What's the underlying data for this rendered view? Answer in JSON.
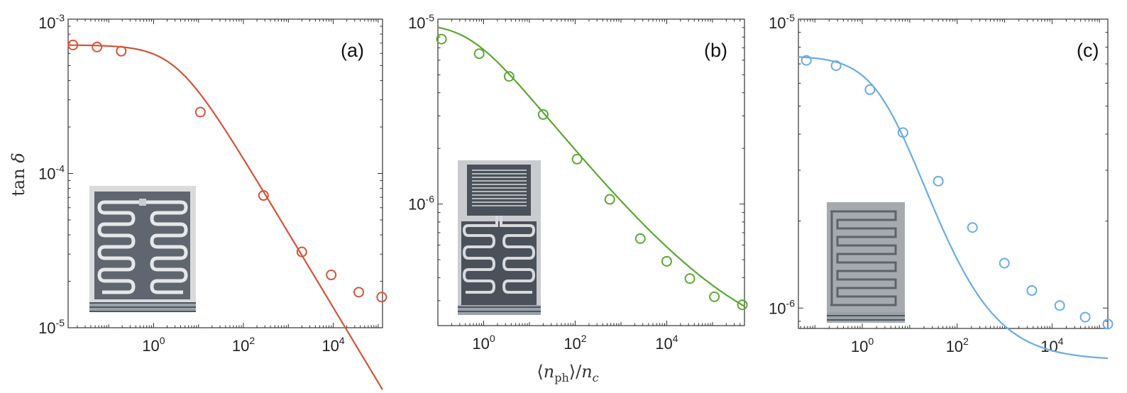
{
  "colors": {
    "panel_a": "#d4543a",
    "panel_b": "#5aa832",
    "panel_c": "#6aace6"
  },
  "chart_data": [
    {
      "type": "scatter",
      "panel_label": "(a)",
      "ylabel": "tan δ",
      "xlabel": "",
      "xscale": "log",
      "yscale": "log",
      "xlim": [
        0.0125,
        125000
      ],
      "ylim": [
        1e-05,
        0.001
      ],
      "xticks": [
        {
          "base": "10",
          "exp": "0",
          "value": 1
        },
        {
          "base": "10",
          "exp": "2",
          "value": 100
        },
        {
          "base": "10",
          "exp": "4",
          "value": 10000
        }
      ],
      "yticks": [
        {
          "base": "10",
          "exp": "-3",
          "value": 0.001
        },
        {
          "base": "10",
          "exp": "-4",
          "value": 0.0001
        },
        {
          "base": "10",
          "exp": "-5",
          "value": 1e-05
        }
      ],
      "points": [
        {
          "x": 0.016,
          "y": 0.00068
        },
        {
          "x": 0.055,
          "y": 0.00066
        },
        {
          "x": 0.19,
          "y": 0.00062
        },
        {
          "x": 11,
          "y": 0.00025
        },
        {
          "x": 280,
          "y": 7.2e-05
        },
        {
          "x": 2000,
          "y": 3.1e-05
        },
        {
          "x": 9000,
          "y": 2.2e-05
        },
        {
          "x": 37000,
          "y": 1.7e-05
        },
        {
          "x": 120000,
          "y": 1.58e-05
        }
      ],
      "fit": {
        "F": 0.00068,
        "n0": 3.1,
        "a": 0.485,
        "offset": 0
      }
    },
    {
      "type": "scatter",
      "panel_label": "(b)",
      "xlabel": "⟨n_ph⟩/n_c",
      "xscale": "log",
      "yscale": "log",
      "xlim": [
        0.1,
        500000
      ],
      "ylim": [
        2.2e-07,
        1e-05
      ],
      "xticks": [
        {
          "base": "10",
          "exp": "0",
          "value": 1
        },
        {
          "base": "10",
          "exp": "2",
          "value": 100
        },
        {
          "base": "10",
          "exp": "4",
          "value": 10000
        }
      ],
      "yticks": [
        {
          "base": "10",
          "exp": "-5",
          "value": 1e-05
        },
        {
          "base": "10",
          "exp": "-6",
          "value": 1e-06
        }
      ],
      "points": [
        {
          "x": 0.12,
          "y": 7.8e-06
        },
        {
          "x": 0.8,
          "y": 6.5e-06
        },
        {
          "x": 3.6,
          "y": 4.9e-06
        },
        {
          "x": 20,
          "y": 3.05e-06
        },
        {
          "x": 110,
          "y": 1.75e-06
        },
        {
          "x": 570,
          "y": 1.06e-06
        },
        {
          "x": 2650,
          "y": 6.5e-07
        },
        {
          "x": 10000,
          "y": 4.9e-07
        },
        {
          "x": 32000,
          "y": 3.95e-07
        },
        {
          "x": 110000,
          "y": 3.15e-07
        },
        {
          "x": 450000,
          "y": 2.85e-07
        }
      ],
      "fit": {
        "F": 9.4e-06,
        "n0": 0.5,
        "a": 0.31,
        "offset": 1.5e-07
      }
    },
    {
      "type": "scatter",
      "panel_label": "(c)",
      "xlabel": "",
      "xscale": "log",
      "yscale": "log",
      "xlim": [
        0.045,
        150000
      ],
      "ylim": [
        8.5e-07,
        1e-05
      ],
      "xticks": [
        {
          "base": "10",
          "exp": "0",
          "value": 1
        },
        {
          "base": "10",
          "exp": "2",
          "value": 100
        },
        {
          "base": "10",
          "exp": "4",
          "value": 10000
        }
      ],
      "yticks": [
        {
          "base": "10",
          "exp": "-5",
          "value": 1e-05
        },
        {
          "base": "10",
          "exp": "-6",
          "value": 1e-06
        }
      ],
      "points": [
        {
          "x": 0.066,
          "y": 7.2e-06
        },
        {
          "x": 0.28,
          "y": 6.9e-06
        },
        {
          "x": 1.45,
          "y": 5.7e-06
        },
        {
          "x": 7.2,
          "y": 4.05e-06
        },
        {
          "x": 40,
          "y": 2.75e-06
        },
        {
          "x": 210,
          "y": 1.9e-06
        },
        {
          "x": 990,
          "y": 1.43e-06
        },
        {
          "x": 3750,
          "y": 1.15e-06
        },
        {
          "x": 14500,
          "y": 1.02e-06
        },
        {
          "x": 50000,
          "y": 9.3e-07
        },
        {
          "x": 150000,
          "y": 8.8e-07
        }
      ],
      "fit": {
        "F": 6.8e-06,
        "n0": 3.0,
        "a": 0.6,
        "offset": 6.6e-07
      }
    }
  ]
}
